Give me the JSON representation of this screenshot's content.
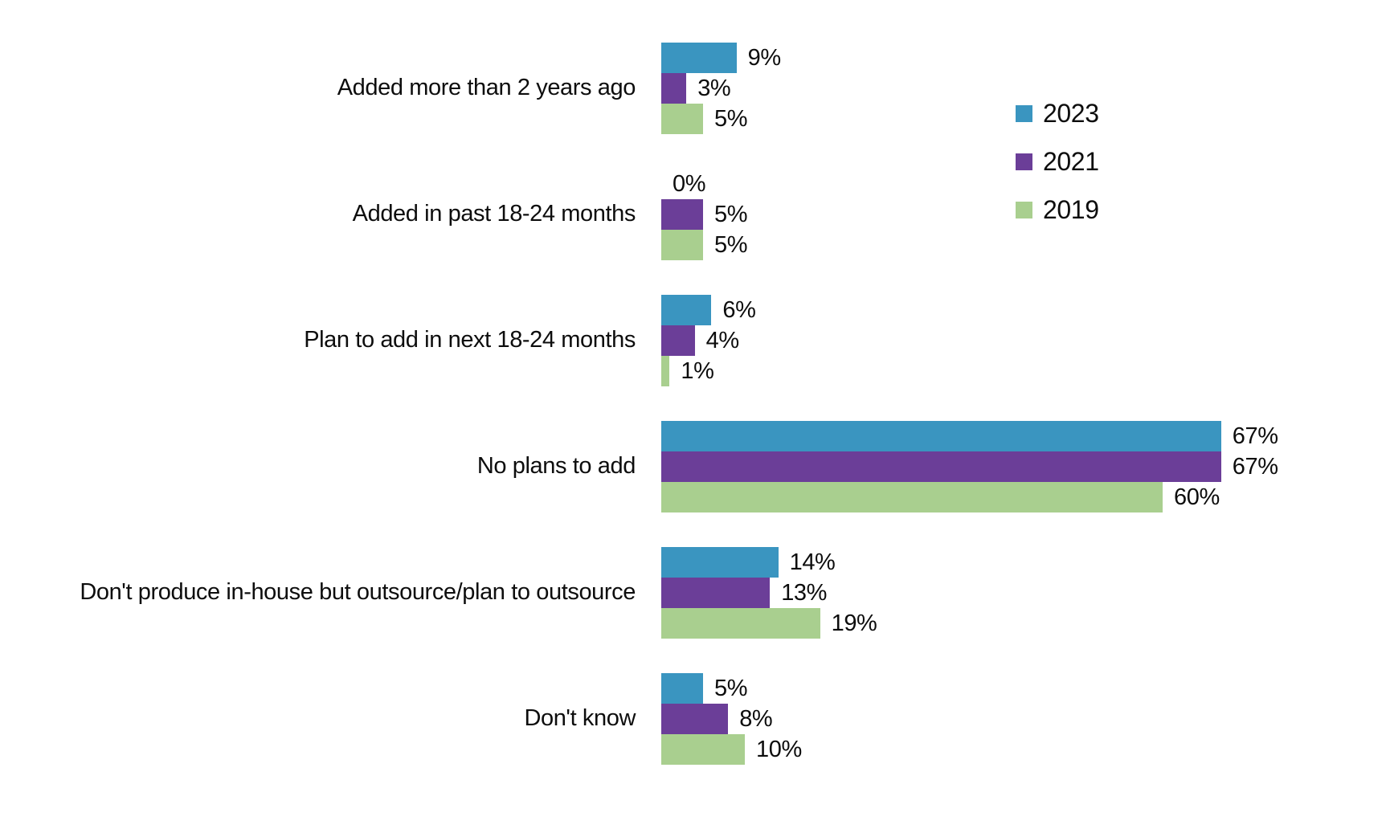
{
  "chart_data": {
    "type": "bar",
    "orientation": "horizontal",
    "title": "",
    "xlabel": "",
    "ylabel": "",
    "grid": false,
    "axis_visible": false,
    "xlim": [
      0,
      72
    ],
    "value_suffix": "%",
    "legend_position": "right",
    "categories": [
      "Added more than 2 years ago",
      "Added in past 18-24 months",
      "Plan to add in next 18-24 months",
      "No plans to add",
      "Don't produce in-house but outsource/plan to outsource",
      "Don't know"
    ],
    "series": [
      {
        "name": "2023",
        "color": "#3A95C0",
        "values": [
          9,
          0,
          6,
          67,
          14,
          5
        ]
      },
      {
        "name": "2021",
        "color": "#6B3E98",
        "values": [
          3,
          5,
          4,
          67,
          13,
          8
        ]
      },
      {
        "name": "2019",
        "color": "#A9CF8F",
        "values": [
          5,
          5,
          1,
          60,
          19,
          10
        ]
      }
    ]
  },
  "colors": {
    "background": "#ffffff",
    "text": "#0d0d0d"
  }
}
